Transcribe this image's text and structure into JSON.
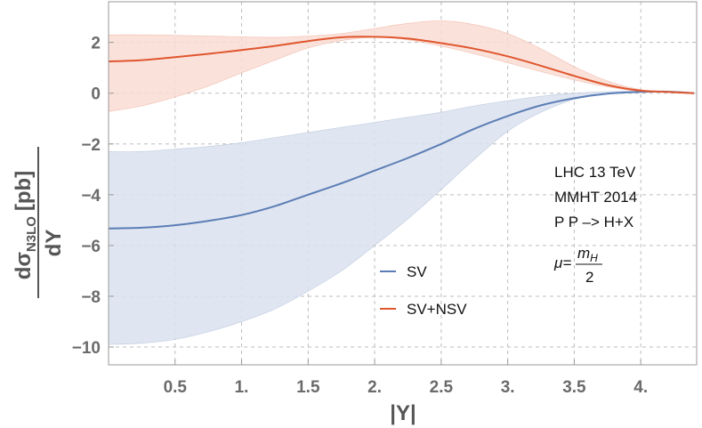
{
  "chart_data": {
    "type": "line",
    "title": "",
    "xlabel": "|Y|",
    "ylabel": {
      "d_top": "d",
      "sigma": "σ",
      "sub": "N3LO",
      "unit": "[pb]",
      "bottom": "dY"
    },
    "xlim": [
      0,
      4.42
    ],
    "ylim": [
      -10.7,
      3.6
    ],
    "x_ticks": [
      {
        "value": 0.5,
        "label": "0.5"
      },
      {
        "value": 1.0,
        "label": "1."
      },
      {
        "value": 1.5,
        "label": "1.5"
      },
      {
        "value": 2.0,
        "label": "2."
      },
      {
        "value": 2.5,
        "label": "2.5"
      },
      {
        "value": 3.0,
        "label": "3."
      },
      {
        "value": 3.5,
        "label": "3.5"
      },
      {
        "value": 4.0,
        "label": "4."
      }
    ],
    "y_ticks": [
      {
        "value": 2,
        "label": "2"
      },
      {
        "value": 0,
        "label": "0"
      },
      {
        "value": -2,
        "label": "−2"
      },
      {
        "value": -4,
        "label": "−4"
      },
      {
        "value": -6,
        "label": "−6"
      },
      {
        "value": -8,
        "label": "−8"
      },
      {
        "value": -10,
        "label": "−10"
      }
    ],
    "grid": true,
    "x": [
      0.0,
      0.25,
      0.5,
      0.75,
      1.0,
      1.25,
      1.5,
      1.75,
      2.0,
      2.25,
      2.5,
      2.75,
      3.0,
      3.25,
      3.5,
      3.75,
      4.0,
      4.2,
      4.4
    ],
    "series": [
      {
        "name": "SV",
        "color": "#5b7db5",
        "band_color": "#dbe2ee",
        "values": [
          -5.33,
          -5.3,
          -5.2,
          -5.03,
          -4.8,
          -4.45,
          -4.0,
          -3.55,
          -3.05,
          -2.55,
          -2.0,
          -1.4,
          -0.9,
          -0.48,
          -0.2,
          -0.02,
          0.05,
          0.06,
          0.0
        ],
        "band_upper": [
          -2.3,
          -2.3,
          -2.2,
          -2.1,
          -1.95,
          -1.75,
          -1.55,
          -1.35,
          -1.15,
          -0.95,
          -0.75,
          -0.5,
          -0.3,
          -0.12,
          0.0,
          0.06,
          0.08,
          0.07,
          0.0
        ],
        "band_lower": [
          -9.9,
          -9.85,
          -9.7,
          -9.4,
          -9.0,
          -8.5,
          -7.8,
          -7.0,
          -6.0,
          -4.95,
          -3.8,
          -2.6,
          -1.5,
          -0.75,
          -0.25,
          -0.02,
          0.04,
          0.05,
          0.0
        ]
      },
      {
        "name": "SV+NSV",
        "color": "#e0562e",
        "band_color": "#f9ddd5",
        "values": [
          1.25,
          1.3,
          1.42,
          1.55,
          1.7,
          1.86,
          2.05,
          2.2,
          2.22,
          2.15,
          1.97,
          1.75,
          1.45,
          1.08,
          0.68,
          0.32,
          0.1,
          0.05,
          0.0
        ],
        "band_upper": [
          2.3,
          2.3,
          2.28,
          2.25,
          2.22,
          2.2,
          2.25,
          2.35,
          2.55,
          2.75,
          2.85,
          2.7,
          2.35,
          1.75,
          1.05,
          0.48,
          0.14,
          0.07,
          0.0
        ],
        "band_lower": [
          -0.72,
          -0.5,
          -0.15,
          0.28,
          0.8,
          1.3,
          1.78,
          2.07,
          2.2,
          2.1,
          1.85,
          1.55,
          1.2,
          0.85,
          0.52,
          0.25,
          0.07,
          0.04,
          0.0
        ]
      }
    ],
    "annotations": {
      "collider": "LHC 13 TeV",
      "pdf": "MMHT 2014",
      "process": "P P –> H+X",
      "scale_prefix": "μ=",
      "scale_num": "m",
      "scale_num_sub": "H",
      "scale_den": "2"
    },
    "legend": {
      "placement": "bottom-center",
      "entries": [
        "SV",
        "SV+NSV"
      ]
    }
  }
}
